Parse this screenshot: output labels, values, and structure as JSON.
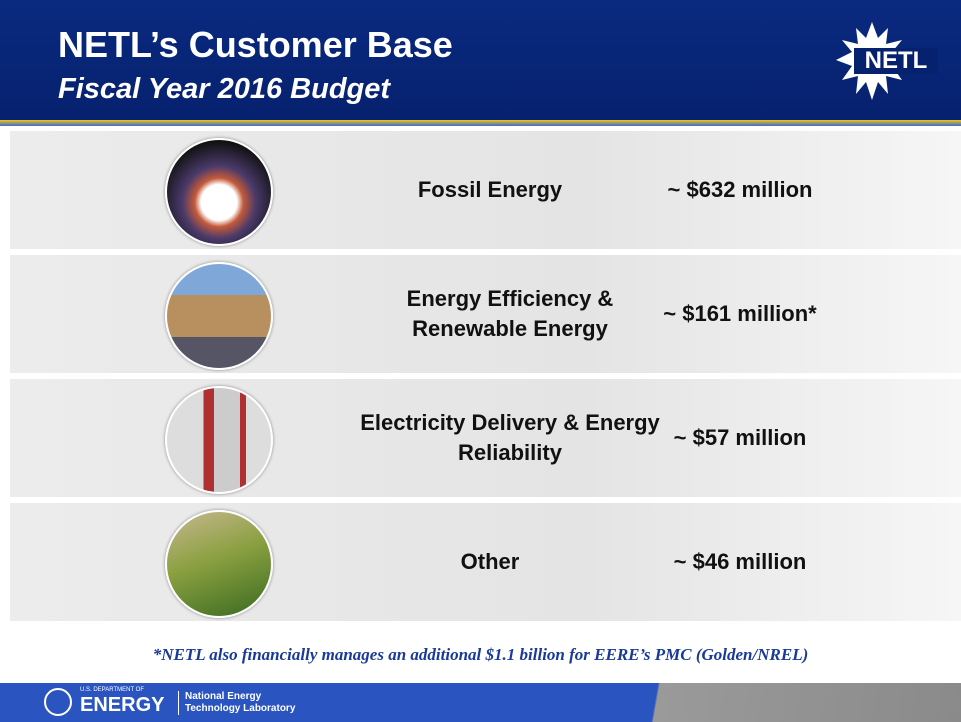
{
  "header": {
    "title": "NETL’s Customer Base",
    "subtitle": "Fiscal Year 2016 Budget",
    "logo": "NETL"
  },
  "rows": [
    {
      "label": "Fossil Energy",
      "amount": "~ $632 million"
    },
    {
      "label": "Energy Efficiency & Renewable Energy",
      "amount": "~ $161 million*"
    },
    {
      "label": "Electricity Delivery & Energy Reliability",
      "amount": "~ $57 million"
    },
    {
      "label": "Other",
      "amount": "~ $46 million"
    }
  ],
  "footnote": "*NETL also financially manages an additional $1.1 billion for EERE’s PMC (Golden/NREL)",
  "footer": {
    "department": "U.S. DEPARTMENT OF",
    "energy": "ENERGY",
    "lab_line1": "National Energy",
    "lab_line2": "Technology Laboratory"
  }
}
